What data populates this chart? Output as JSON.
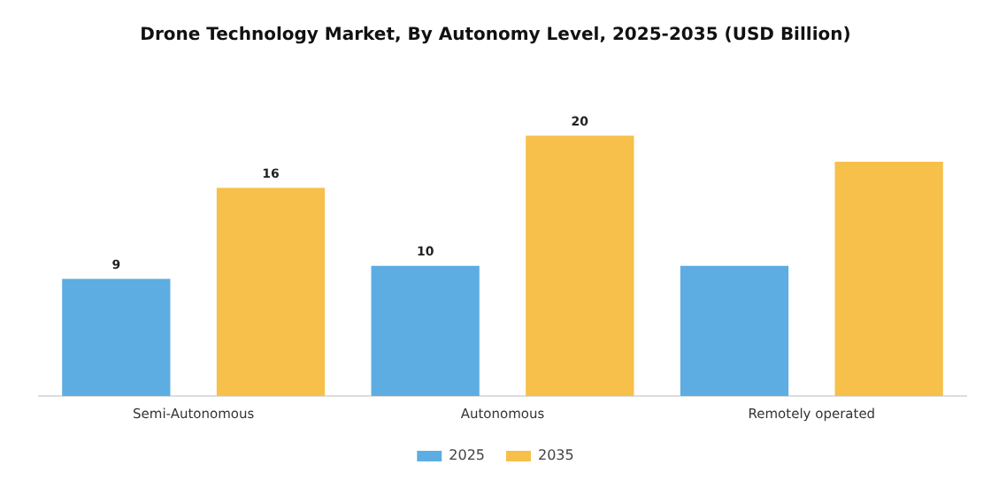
{
  "chart_data": {
    "type": "bar",
    "title": "Drone Technology Market, By Autonomy Level, 2025-2035 (USD Billion)",
    "categories": [
      "Semi-Autonomous",
      "Autonomous",
      "Remotely operated"
    ],
    "series": [
      {
        "name": "2025",
        "color": "#5dade2",
        "values": [
          9,
          10,
          10
        ],
        "value_labels": [
          "9",
          "10",
          null
        ]
      },
      {
        "name": "2035",
        "color": "#f7c04a",
        "values": [
          16,
          20,
          18
        ],
        "value_labels": [
          "16",
          "20",
          null
        ]
      }
    ],
    "legend": "bottom",
    "grid": false
  }
}
